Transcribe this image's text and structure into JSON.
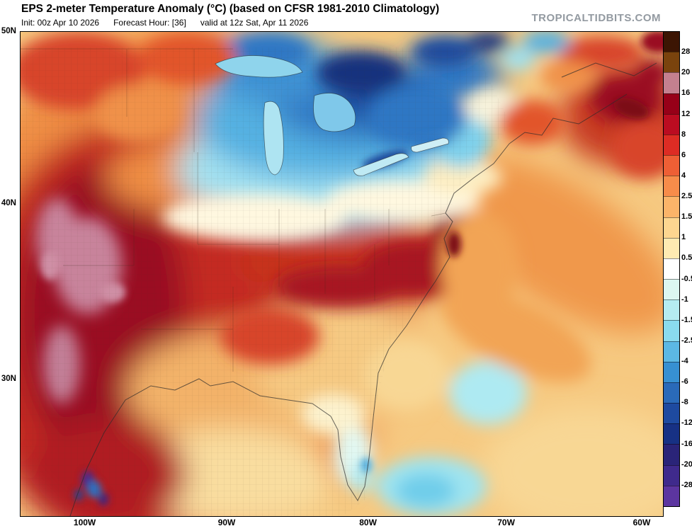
{
  "header": {
    "title": "EPS 2-meter Temperature Anomaly (°C) (based on CFSR 1981-2010 Climatology)",
    "init_label": "Init: 00z Apr 10 2026",
    "forecast_label": "Forecast Hour: [36]",
    "valid_label": "valid at 12z Sat, Apr 11 2026",
    "watermark": "TROPICALTIDBITS.COM"
  },
  "chart_data": {
    "type": "heatmap",
    "title": "EPS 2-meter Temperature Anomaly (°C)",
    "climatology_base": "CFSR 1981-2010 Climatology",
    "model": "EPS",
    "init": "00z Apr 10 2026",
    "forecast_hour": 36,
    "valid": "12z Sat, Apr 11 2026",
    "units": "°C",
    "region": "Eastern North America and western Atlantic (approx 107W-59W, 22N-50N)",
    "lat_ticks": [
      {
        "label": "50N",
        "pos": 0.0
      },
      {
        "label": "40N",
        "pos": 0.355
      },
      {
        "label": "30N",
        "pos": 0.718
      }
    ],
    "lon_ticks": [
      {
        "label": "100W",
        "pos": 0.101
      },
      {
        "label": "90W",
        "pos": 0.322
      },
      {
        "label": "80W",
        "pos": 0.542
      },
      {
        "label": "70W",
        "pos": 0.757
      },
      {
        "label": "60W",
        "pos": 0.968
      }
    ],
    "colorbar": {
      "orientation": "vertical",
      "tick_labels": [
        "28",
        "20",
        "16",
        "12",
        "8",
        "6",
        "4",
        "2.5",
        "1.5",
        "1",
        "0.5",
        "-0.5",
        "-1",
        "-1.5",
        "-2.5",
        "-4",
        "-6",
        "-8",
        "-12",
        "-16",
        "-20",
        "-28"
      ],
      "colors_top_to_bottom": [
        "#3c1503",
        "#7a430d",
        "#c4808f",
        "#970018",
        "#bb0c21",
        "#dd2c24",
        "#ee5f35",
        "#f78c4a",
        "#fbb469",
        "#fdd690",
        "#feeab2",
        "#ffffff",
        "#dcf7f1",
        "#b5ecf1",
        "#8adbee",
        "#5cb8e4",
        "#3790d2",
        "#2a6ab9",
        "#1e4aa0",
        "#173184",
        "#2a2478",
        "#3f2a8c",
        "#5c35a0"
      ]
    },
    "anomaly_features": [
      {
        "region": "Southern Plains / Texas / Oklahoma",
        "anomaly_c": "+8 to +20 (cores +16 to +20)"
      },
      {
        "region": "Lower Mississippi Valley / Tennessee / Virginia",
        "anomaly_c": "+6 to +12"
      },
      {
        "region": "Great Lakes / Upper Midwest / Ontario",
        "anomaly_c": "-4 to -12"
      },
      {
        "region": "Ohio Valley to Mid-Atlantic transition band",
        "anomaly_c": "-1 to +1"
      },
      {
        "region": "Southeast / Gulf Coast / Florida",
        "anomaly_c": "-1 to +2.5"
      },
      {
        "region": "Bahamas and waters east of Florida",
        "anomaly_c": "-1 to -2.5"
      },
      {
        "region": "Western Atlantic / Gulf Stream",
        "anomaly_c": "+1.5 to +6"
      },
      {
        "region": "Nova Scotia / Gulf of St. Lawrence",
        "anomaly_c": "+8 to +16"
      },
      {
        "region": "Interior Mexico spots",
        "anomaly_c": "-8 to -20"
      }
    ]
  }
}
